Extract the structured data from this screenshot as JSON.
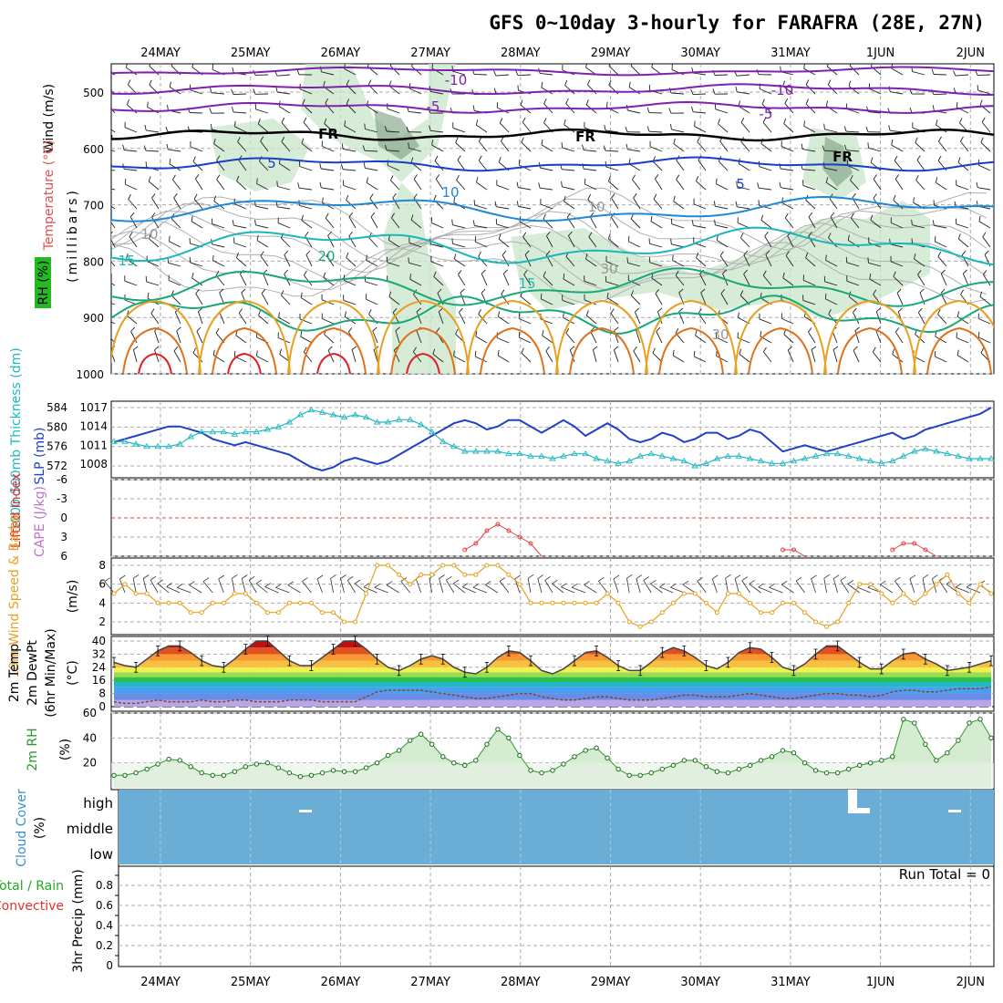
{
  "title": "GFS 0~10day 3-hourly for FARAFRA (28E, 27N)",
  "dates": [
    "24MAY",
    "25MAY",
    "26MAY",
    "27MAY",
    "28MAY",
    "29MAY",
    "30MAY",
    "31MAY",
    "1JUN",
    "2JUN"
  ],
  "colors": {
    "purple": "#8020b0",
    "blue": "#1a3ccc",
    "skyblue": "#1e88d8",
    "teal": "#18b8b8",
    "green": "#18a878",
    "orange": "#e8a020",
    "darkorange": "#e07018",
    "red": "#e02020",
    "cyan": "#20b8c0",
    "slp": "#2040c8",
    "cloud": "#6aaed6",
    "rhfill": "#c8e6c9",
    "rhline": "#2a9a2a"
  },
  "panels": {
    "upper_air": {
      "ylabels": [
        {
          "text": "Wind (m/s)",
          "color": "#000000"
        },
        {
          "text": "Temperature (°C)",
          "color": "#e05050"
        },
        {
          "text": "(millibars)",
          "color": "#000000"
        },
        {
          "text": "RH (%)",
          "color": "#000000"
        }
      ],
      "yticks": [
        "500",
        "600",
        "700",
        "800",
        "900",
        "1000"
      ],
      "contour_labels": [
        {
          "text": "-10",
          "color": "#8020b0"
        },
        {
          "text": "-10",
          "color": "#8020b0"
        },
        {
          "text": "-5",
          "color": "#8020b0"
        },
        {
          "text": "-5",
          "color": "#8020b0"
        },
        {
          "text": "FR",
          "color": "#000000"
        },
        {
          "text": "FR",
          "color": "#000000"
        },
        {
          "text": "FR",
          "color": "#000000"
        },
        {
          "text": "5",
          "color": "#1a3ccc"
        },
        {
          "text": "5",
          "color": "#1a3ccc"
        },
        {
          "text": "10",
          "color": "#1e88d8"
        },
        {
          "text": "15",
          "color": "#18b8b8"
        },
        {
          "text": "20",
          "color": "#18a878"
        },
        {
          "text": "15",
          "color": "#18b8b8"
        },
        {
          "text": "10",
          "color": "#999999"
        },
        {
          "text": "10",
          "color": "#999999"
        },
        {
          "text": "30",
          "color": "#999999"
        },
        {
          "text": "30",
          "color": "#999999"
        }
      ]
    },
    "thickness": {
      "ylabel_left": "1000-500mb Thickness (dm)",
      "ylabel_right": "SLP (mb)",
      "yticks_left": [
        "584",
        "580",
        "576",
        "572"
      ],
      "yticks_right": [
        "1017",
        "1014",
        "1011",
        "1008"
      ]
    },
    "stability": {
      "ylabel_left": "Lifted Index",
      "ylabel_right": "CAPE (J/kg)",
      "yticks": [
        "-6",
        "-3",
        "0",
        "3",
        "6"
      ]
    },
    "wind10m": {
      "ylabel": "10m Wind Speed & Barbs",
      "yunit": "(m/s)",
      "yticks": [
        "8",
        "6",
        "4",
        "2"
      ]
    },
    "temp2m": {
      "ylabel1": "2m Temp",
      "ylabel2": "2m DewPt",
      "ylabel3": "(6hr Min/Max)",
      "yunit": "(°C)",
      "yticks": [
        "40",
        "32",
        "24",
        "16",
        "8",
        "0"
      ]
    },
    "rh2m": {
      "ylabel": "2m RH",
      "yunit": "(%)",
      "yticks": [
        "60",
        "40",
        "20"
      ]
    },
    "cloud": {
      "ylabel": "Cloud Cover",
      "yunit": "(%)",
      "levels": [
        "high",
        "middle",
        "low"
      ]
    },
    "precip": {
      "ylabel_green": "Total / Rain",
      "ylabel_red": "Convective",
      "ylabel": "3hr Precip (mm)",
      "yticks": [
        "0.8",
        "0.6",
        "0.4",
        "0.2",
        "0"
      ],
      "run_total": "Run Total = 0"
    }
  },
  "chart_data": {
    "type": "line",
    "x_label": "date (3-hourly, 24MAY–2JUN)",
    "series": [
      {
        "name": "SLP (mb)",
        "values": [
          1011.5,
          1012,
          1012.5,
          1013,
          1013.5,
          1014,
          1014,
          1013.5,
          1013,
          1012,
          1011.5,
          1011,
          1011.5,
          1011,
          1010.5,
          1010,
          1009.5,
          1008.5,
          1007.5,
          1007,
          1007.5,
          1008.5,
          1009,
          1008.5,
          1008,
          1008.5,
          1009.5,
          1010.5,
          1011.5,
          1012.5,
          1013.5,
          1014.5,
          1015,
          1014.5,
          1013.5,
          1014,
          1015,
          1015,
          1014,
          1013,
          1014,
          1015,
          1014,
          1012.5,
          1013.5,
          1014.5,
          1013.5,
          1012,
          1011.5,
          1012,
          1013,
          1012.5,
          1011.5,
          1012,
          1013,
          1013,
          1012,
          1012.5,
          1013.5,
          1013,
          1011.5,
          1010,
          1010.5,
          1011,
          1010.5,
          1010,
          1010.5,
          1011,
          1011.5,
          1012,
          1012.5,
          1013,
          1012,
          1012.5,
          1013.5,
          1014,
          1014.5,
          1015,
          1015.5,
          1016,
          1017
        ]
      },
      {
        "name": "1000-500mb Thickness (dm)",
        "values": [
          577,
          577,
          576.5,
          576,
          576,
          576,
          576.5,
          578,
          579,
          579,
          579,
          578.5,
          579,
          579,
          579.5,
          580,
          581,
          582.5,
          583.5,
          583,
          582.5,
          582,
          582.5,
          582,
          581,
          581,
          581.5,
          581.5,
          580.5,
          579,
          577,
          576,
          575,
          575,
          575,
          575,
          574.5,
          574.5,
          574,
          574,
          573.5,
          574,
          574.5,
          574.5,
          573.5,
          573,
          572.5,
          573,
          574,
          574.5,
          574,
          573.5,
          573,
          572,
          572.5,
          573.5,
          574,
          574,
          573.5,
          573,
          572.5,
          572.5,
          573,
          573.5,
          574,
          574.5,
          574.5,
          574,
          573.5,
          573,
          572.5,
          573,
          574,
          575,
          575.5,
          575,
          574.5,
          574,
          573.5,
          573.5,
          573.5
        ]
      },
      {
        "name": "Lifted Index",
        "values": [
          6,
          6,
          6,
          6,
          6,
          6,
          6,
          6,
          6,
          6,
          6,
          6,
          6,
          6,
          6,
          6,
          6,
          6,
          6,
          6,
          6,
          6,
          6,
          6,
          6,
          6,
          6,
          6,
          6,
          6,
          6,
          6,
          5,
          4,
          2,
          1,
          2,
          3,
          4,
          6,
          6,
          6,
          6,
          6,
          6,
          6,
          6,
          6,
          6,
          6,
          6,
          6,
          6,
          6,
          6,
          6,
          6,
          6,
          6,
          6,
          6,
          5,
          5,
          6,
          6,
          6,
          6,
          6,
          6,
          6,
          6,
          5,
          4,
          4,
          5,
          6,
          6,
          6,
          6,
          6,
          6
        ]
      },
      {
        "name": "10m Wind Speed (m/s)",
        "values": [
          5,
          6,
          5,
          5,
          4,
          4,
          4,
          3,
          3,
          4,
          4,
          5,
          5,
          4,
          3,
          3,
          4,
          4,
          4,
          3,
          3,
          2,
          2,
          5,
          8,
          8,
          7,
          6,
          7,
          7,
          8,
          8,
          7,
          7,
          8,
          8,
          7,
          6,
          4,
          4,
          4,
          4,
          4,
          4,
          4,
          5,
          4,
          2,
          1.5,
          2,
          3,
          4,
          5,
          5,
          4,
          3,
          5,
          5,
          4,
          3,
          3,
          4,
          4,
          3,
          2,
          1.5,
          2,
          4,
          6,
          6,
          5,
          4,
          5,
          4,
          5,
          6,
          7,
          5,
          4,
          6,
          5
        ]
      },
      {
        "name": "2m Temp (°C)",
        "values": [
          27,
          25,
          24,
          29,
          34,
          37,
          37,
          33,
          28,
          25,
          24,
          29,
          35,
          40,
          40,
          34,
          28,
          25,
          25,
          30,
          35,
          40,
          40,
          35,
          29,
          24,
          22,
          25,
          29,
          31,
          29,
          24,
          21,
          20,
          24,
          30,
          34,
          33,
          28,
          22,
          20,
          23,
          28,
          33,
          34,
          30,
          25,
          22,
          22,
          27,
          33,
          36,
          34,
          30,
          25,
          23,
          27,
          33,
          36,
          35,
          30,
          24,
          22,
          26,
          32,
          37,
          37,
          32,
          27,
          23,
          23,
          28,
          32,
          33,
          29,
          26,
          22,
          23,
          24,
          26,
          28
        ]
      },
      {
        "name": "2m DewPt (°C)",
        "values": [
          3,
          2,
          2,
          3,
          4,
          3,
          3,
          3,
          4,
          3,
          3,
          4,
          4,
          3,
          3,
          3,
          4,
          4,
          4,
          3,
          3,
          3,
          3,
          6,
          9,
          10,
          10,
          10,
          10,
          9,
          8,
          7,
          6,
          5,
          5,
          6,
          7,
          8,
          8,
          6,
          5,
          4,
          4,
          5,
          6,
          6,
          5,
          4,
          4,
          4,
          5,
          6,
          7,
          7,
          6,
          6,
          6,
          7,
          8,
          7,
          6,
          5,
          5,
          6,
          7,
          8,
          8,
          7,
          7,
          6,
          7,
          9,
          10,
          10,
          9,
          9,
          10,
          11,
          11,
          11,
          12
        ]
      },
      {
        "name": "2m RH (%)",
        "values": [
          10,
          10,
          12,
          15,
          19,
          23,
          22,
          17,
          12,
          10,
          10,
          13,
          17,
          19,
          20,
          16,
          12,
          9,
          10,
          12,
          14,
          13,
          13,
          16,
          20,
          26,
          30,
          38,
          43,
          35,
          25,
          20,
          18,
          22,
          35,
          47,
          40,
          26,
          14,
          12,
          14,
          19,
          25,
          30,
          32,
          24,
          15,
          10,
          10,
          12,
          15,
          18,
          22,
          22,
          17,
          13,
          12,
          15,
          18,
          22,
          25,
          30,
          28,
          20,
          14,
          12,
          12,
          15,
          18,
          20,
          22,
          25,
          55,
          52,
          35,
          22,
          28,
          38,
          52,
          55,
          40
        ]
      }
    ],
    "cloud_cover": "low/middle/high ~100% throughout; small gaps near 25MAY-26MAY (high), 31MAY-1JUN (high/middle), 1JUN-2JUN (high)",
    "precip": {
      "values": "0 throughout",
      "run_total": 0,
      "ylim": [
        0,
        0.9
      ]
    }
  }
}
